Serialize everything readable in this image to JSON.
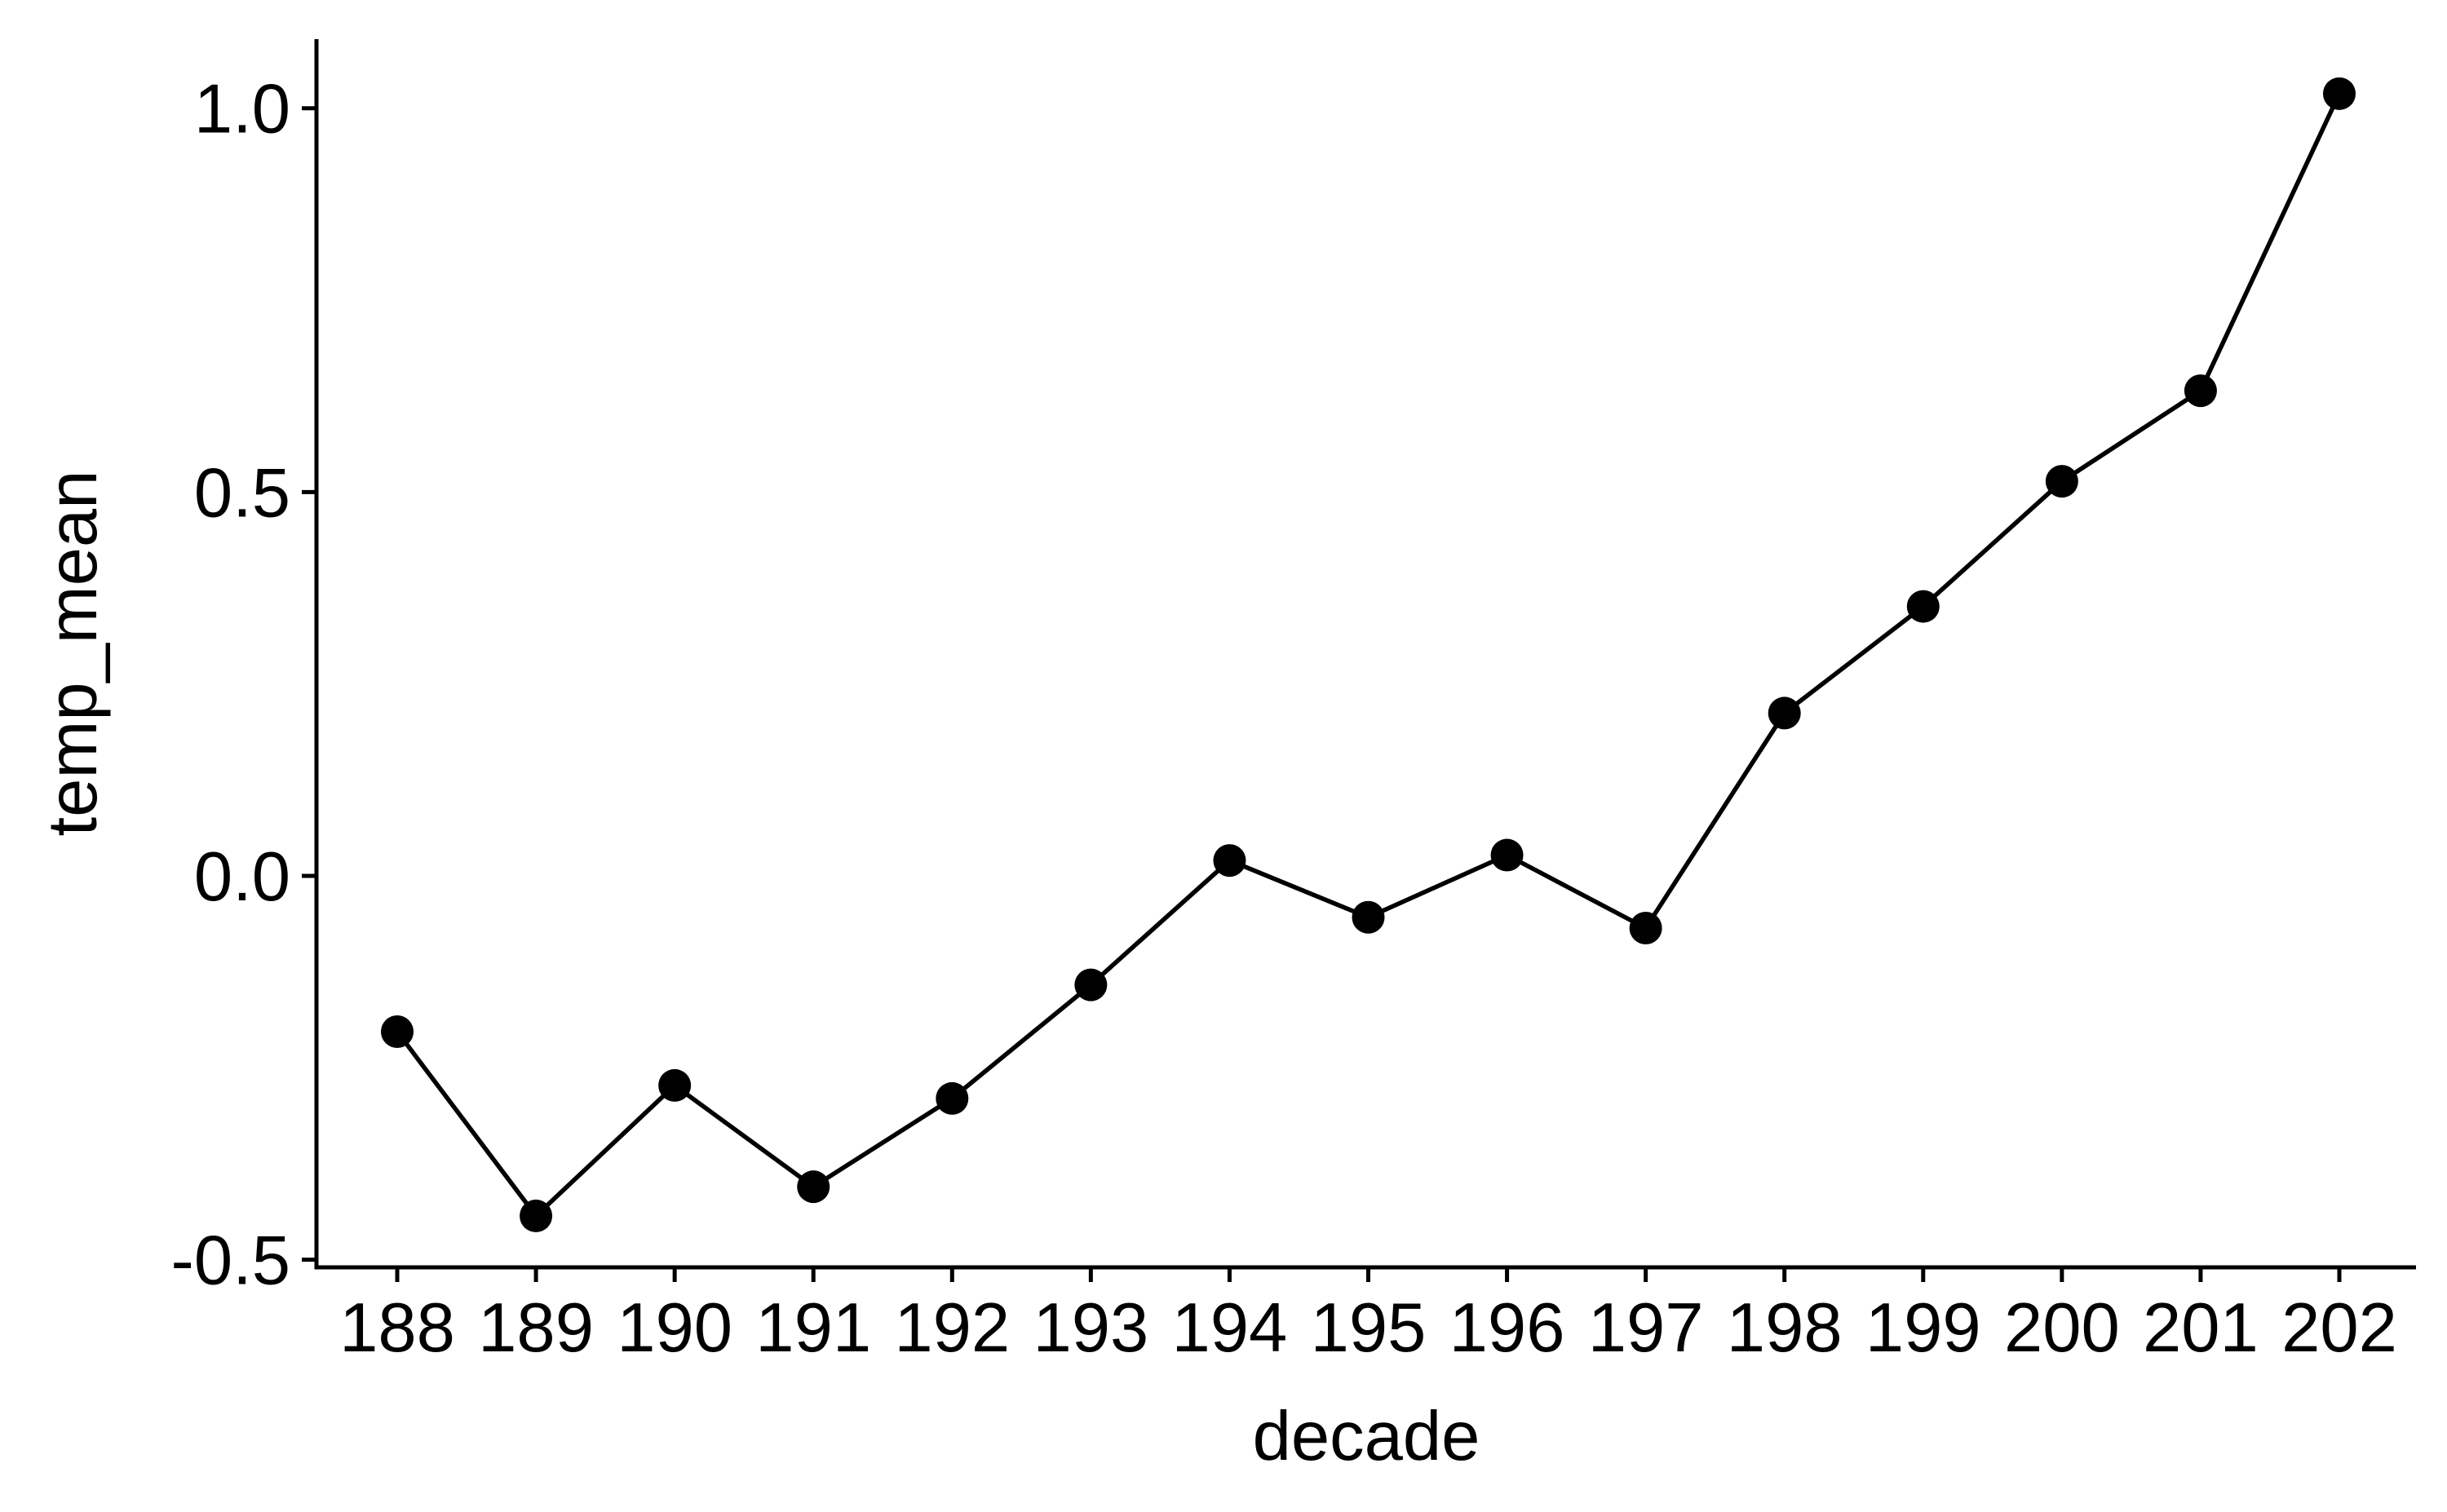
{
  "chart_data": {
    "type": "line",
    "xlabel": "decade",
    "ylabel": "temp_mean",
    "categories": [
      "188",
      "189",
      "190",
      "191",
      "192",
      "193",
      "194",
      "195",
      "196",
      "197",
      "198",
      "199",
      "200",
      "201",
      "202"
    ],
    "series": [
      {
        "values": [
          -0.203,
          -0.443,
          -0.273,
          -0.405,
          -0.29,
          -0.142,
          0.02,
          -0.054,
          0.027,
          -0.068,
          0.212,
          0.351,
          0.514,
          0.632,
          1.019
        ],
        "color": "#000000",
        "markers": true
      }
    ],
    "yticks": [
      -0.5,
      0.0,
      0.5,
      1.0
    ],
    "ytick_labels": [
      "-0.5",
      "0.0",
      "0.5",
      "1.0"
    ],
    "ylim": [
      -0.51,
      1.09
    ],
    "grid": false,
    "legend": "none"
  }
}
